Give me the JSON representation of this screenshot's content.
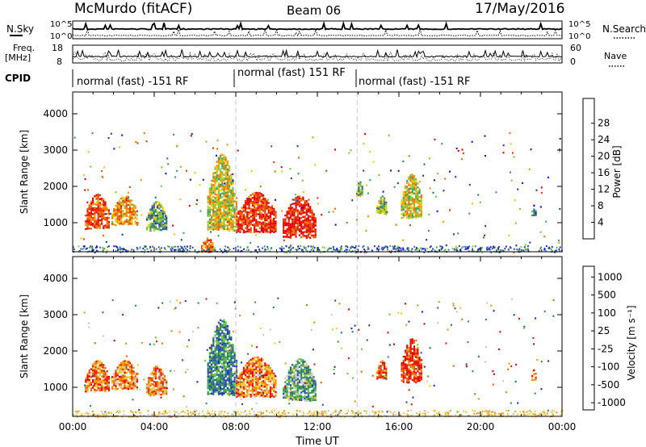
{
  "header": {
    "station": "McMurdo (fitACF)",
    "beam": "Beam 06",
    "date": "17/May/2016"
  },
  "panels": {
    "nsky_label": "N.Sky",
    "nsearch_label": "N.Search",
    "noise_ticks_left": [
      "10^5",
      "10^0"
    ],
    "noise_ticks_right": [
      "10^5",
      "10^0"
    ],
    "freq_label_line1": "Freq.",
    "freq_label_line2": "[MHz]",
    "freq_ticks": [
      "18",
      "8"
    ],
    "nave_label": "Nave",
    "nave_ticks": [
      "60",
      "0"
    ],
    "cpid_label": "CPID",
    "cpid_segments": [
      "normal (fast) -151 RF",
      "normal (fast) 151 RF",
      "normal (fast) -151 RF"
    ]
  },
  "chart_data": [
    {
      "type": "heatmap",
      "title": "",
      "xlabel": "Time UT",
      "ylabel": "Slant Range [km]",
      "x_ticks": [
        "00:00",
        "04:00",
        "08:00",
        "12:00",
        "16:00",
        "20:00",
        "00:00"
      ],
      "xlim_hours": [
        0,
        24
      ],
      "y_ticks": [
        1000,
        2000,
        3000,
        4000
      ],
      "ylim": [
        200,
        4600
      ],
      "colorbar": {
        "label": "Power [dB]",
        "ticks": [
          "4",
          "8",
          "12",
          "16",
          "20",
          "24",
          "28"
        ],
        "colors": [
          "#1414e6",
          "#1e3ca6",
          "#2a6e8a",
          "#3c9c5a",
          "#78c83c",
          "#f0c800",
          "#f09a00",
          "#f06e00",
          "#e63c00",
          "#e60000"
        ]
      },
      "echo_regions": [
        {
          "t0": 0.6,
          "t1": 1.8,
          "r0": 850,
          "r1": 1800,
          "level": 0.85
        },
        {
          "t0": 1.9,
          "t1": 3.2,
          "r0": 950,
          "r1": 1750,
          "level": 0.7
        },
        {
          "t0": 3.6,
          "t1": 4.6,
          "r0": 800,
          "r1": 1600,
          "level": 0.35
        },
        {
          "t0": 6.3,
          "t1": 6.9,
          "r0": 200,
          "r1": 600,
          "level": 0.8
        },
        {
          "t0": 6.6,
          "t1": 8.0,
          "r0": 800,
          "r1": 2900,
          "level": 0.55
        },
        {
          "t0": 8.0,
          "t1": 10.0,
          "r0": 750,
          "r1": 1850,
          "level": 0.9
        },
        {
          "t0": 10.3,
          "t1": 11.9,
          "r0": 600,
          "r1": 1750,
          "level": 0.95
        },
        {
          "t0": 13.9,
          "t1": 14.2,
          "r0": 1750,
          "r1": 2150,
          "level": 0.4
        },
        {
          "t0": 14.9,
          "t1": 15.4,
          "r0": 1250,
          "r1": 1750,
          "level": 0.45
        },
        {
          "t0": 16.1,
          "t1": 17.1,
          "r0": 1150,
          "r1": 2350,
          "level": 0.55
        },
        {
          "t0": 22.5,
          "t1": 22.7,
          "r0": 1200,
          "r1": 1500,
          "level": 0.3
        }
      ]
    },
    {
      "type": "heatmap",
      "title": "",
      "xlabel": "Time UT",
      "ylabel": "Slant Range [km]",
      "x_ticks": [
        "00:00",
        "04:00",
        "08:00",
        "12:00",
        "16:00",
        "20:00",
        "00:00"
      ],
      "xlim_hours": [
        0,
        24
      ],
      "y_ticks": [
        1000,
        2000,
        3000,
        4000
      ],
      "ylim": [
        200,
        4600
      ],
      "colorbar": {
        "label": "Velocity [m s⁻¹]",
        "ticks": [
          "1000",
          "500",
          "100",
          "25",
          "-25",
          "-100",
          "-500",
          "-1000"
        ],
        "colors": [
          "#1e32b4",
          "#2850aa",
          "#287878",
          "#329646",
          "#64c832",
          "#c8c8c8",
          "#f0c832",
          "#f09600",
          "#f06400",
          "#e61e00",
          "#e60000"
        ]
      },
      "echo_regions": [
        {
          "t0": 0.6,
          "t1": 1.8,
          "r0": 900,
          "r1": 1750,
          "level": 0.75
        },
        {
          "t0": 1.9,
          "t1": 3.2,
          "r0": 950,
          "r1": 1750,
          "level": 0.72
        },
        {
          "t0": 3.6,
          "t1": 4.6,
          "r0": 800,
          "r1": 1600,
          "level": 0.7
        },
        {
          "t0": 6.6,
          "t1": 8.0,
          "r0": 800,
          "r1": 2900,
          "level": 0.25
        },
        {
          "t0": 8.0,
          "t1": 10.0,
          "r0": 750,
          "r1": 1850,
          "level": 0.75
        },
        {
          "t0": 10.3,
          "t1": 11.9,
          "r0": 650,
          "r1": 1800,
          "level": 0.35
        },
        {
          "t0": 14.9,
          "t1": 15.4,
          "r0": 1250,
          "r1": 1750,
          "level": 0.8
        },
        {
          "t0": 16.1,
          "t1": 17.1,
          "r0": 1150,
          "r1": 2350,
          "level": 0.9
        },
        {
          "t0": 22.5,
          "t1": 22.7,
          "r0": 1200,
          "r1": 1500,
          "level": 0.75
        }
      ]
    }
  ]
}
